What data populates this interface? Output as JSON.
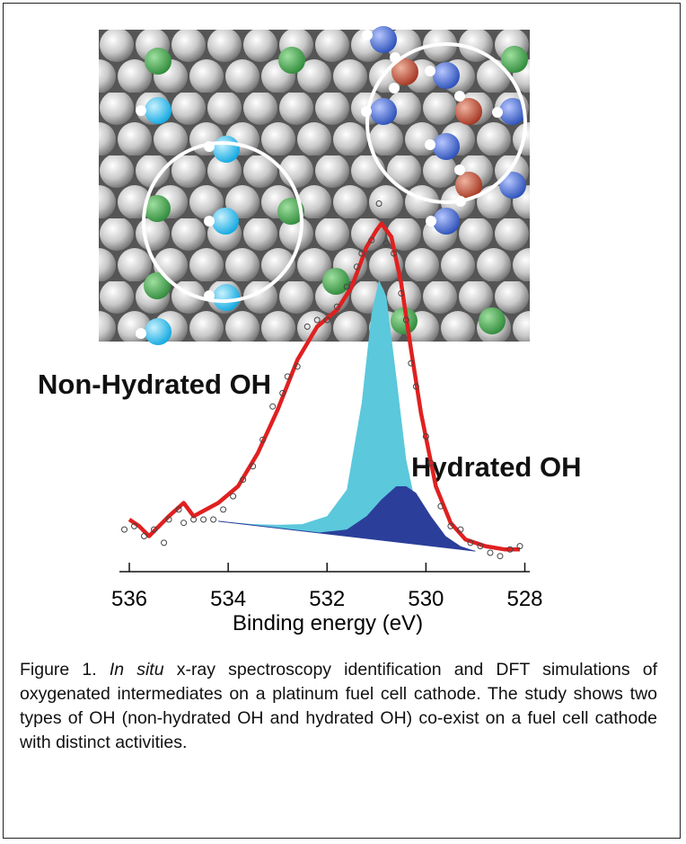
{
  "chart_data": {
    "type": "line",
    "x_label": "Binding energy (eV)",
    "xlim": [
      536.2,
      527.9
    ],
    "xticks": [
      536,
      534,
      532,
      530,
      528
    ],
    "ylim": [
      -0.1,
      1.1
    ],
    "series": [
      {
        "name": "Non-Hydrated OH",
        "color": "#5bc8dc",
        "fill": true,
        "x": [
          534.2,
          533.5,
          533,
          532.5,
          532,
          531.6,
          531.3,
          531.1,
          530.95,
          530.8,
          530.6,
          530.4,
          530.2,
          530,
          529.8,
          529.5,
          529.0
        ],
        "values": [
          0.095,
          0.086,
          0.084,
          0.086,
          0.11,
          0.19,
          0.45,
          0.72,
          0.82,
          0.77,
          0.53,
          0.28,
          0.14,
          0.07,
          0.04,
          0.02,
          0.005
        ]
      },
      {
        "name": "Hydrated OH",
        "color": "#2b3f9a",
        "fill": true,
        "x": [
          532.2,
          531.6,
          531.2,
          530.9,
          530.6,
          530.4,
          530.2,
          529.9,
          529.6,
          529.3,
          529.0
        ],
        "values": [
          0.06,
          0.07,
          0.11,
          0.16,
          0.2,
          0.2,
          0.18,
          0.11,
          0.05,
          0.02,
          0.005
        ]
      },
      {
        "color": "#2b3f9a",
        "baseline": true,
        "x": [
          534.2,
          529.0
        ],
        "values": [
          0.095,
          0.005
        ]
      },
      {
        "color": "#e02020",
        "line": true,
        "x": [
          536.0,
          535.8,
          535.6,
          535.2,
          534.9,
          534.7,
          534.2,
          533.8,
          533.4,
          533.0,
          532.6,
          532.2,
          531.8,
          531.5,
          531.2,
          531.0,
          530.9,
          530.7,
          530.5,
          530.3,
          530.1,
          529.8,
          529.5,
          529.2,
          528.8,
          528.4,
          528.1
        ],
        "values": [
          0.1,
          0.08,
          0.05,
          0.11,
          0.15,
          0.11,
          0.15,
          0.2,
          0.3,
          0.43,
          0.58,
          0.68,
          0.73,
          0.8,
          0.92,
          0.97,
          0.99,
          0.95,
          0.81,
          0.61,
          0.42,
          0.2,
          0.09,
          0.04,
          0.02,
          0.01,
          0.01
        ]
      },
      {
        "color": "#444444",
        "marker": "circle",
        "x": [
          536.1,
          535.9,
          535.7,
          535.5,
          535.3,
          535.2,
          535.0,
          534.9,
          534.7,
          534.5,
          534.3,
          534.1,
          533.9,
          533.7,
          533.5,
          533.3,
          533.1,
          532.9,
          532.8,
          532.6,
          532.4,
          532.2,
          532.0,
          531.8,
          531.6,
          531.4,
          531.3,
          531.1,
          530.95,
          530.8,
          530.65,
          530.5,
          530.4,
          530.3,
          530.2,
          530.0,
          529.9,
          529.7,
          529.5,
          529.3,
          529.1,
          528.9,
          528.7,
          528.5,
          528.3,
          528.1
        ],
        "values": [
          0.07,
          0.08,
          0.05,
          0.07,
          0.03,
          0.1,
          0.13,
          0.09,
          0.1,
          0.1,
          0.1,
          0.13,
          0.17,
          0.22,
          0.26,
          0.34,
          0.44,
          0.48,
          0.53,
          0.56,
          0.68,
          0.7,
          0.7,
          0.74,
          0.8,
          0.86,
          0.9,
          0.94,
          1.05,
          0.93,
          0.9,
          0.78,
          0.7,
          0.57,
          0.5,
          0.35,
          0.27,
          0.14,
          0.08,
          0.07,
          0.03,
          0.02,
          0.0,
          -0.01,
          0.01,
          0.02
        ]
      }
    ]
  },
  "caption": {
    "parts": [
      "Figure 1. ",
      "In situ",
      " x-ray spectroscopy identification and DFT simulations of oxygenated intermediates on a platinum fuel cell cathode. The study shows two types of OH (non-hydrated OH and hydrated OH) co-exist on a fuel cell cathode with distinct activities."
    ]
  }
}
